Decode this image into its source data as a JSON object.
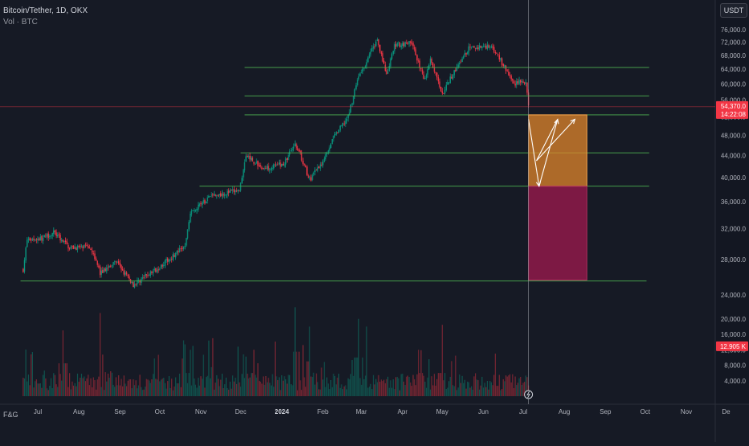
{
  "header": {
    "symbol": "Bitcoin/Tether, 1D, OKX",
    "volume_label": "Vol · BTC",
    "currency_button": "USDT"
  },
  "footer": {
    "fg_label": "F&G"
  },
  "price_badge": {
    "value": "54,370.0",
    "countdown": "14:22:08",
    "color": "#f23645"
  },
  "volume_badge": {
    "value": "12.905 K",
    "color": "#f23645"
  },
  "colors": {
    "up": "#089981",
    "down": "#f23645",
    "support_line": "#4caf50",
    "target_zone": "#e0862b",
    "stop_zone": "#8f1a4a",
    "background": "#161a25"
  },
  "chart_data": {
    "type": "candlestick",
    "title": "Bitcoin/Tether, 1D, OKX",
    "price_axis": {
      "scale": "log",
      "ticks": [
        "76,000.0",
        "72,000.0",
        "68,000.0",
        "64,000.0",
        "60,000.0",
        "56,000.0",
        "52,000.0",
        "48,000.0",
        "44,000.0",
        "40,000.0",
        "36,000.0",
        "32,000.0",
        "28,000.0",
        "24,000.0"
      ],
      "range": [
        22000,
        80000
      ]
    },
    "volume_axis": {
      "ticks": [
        "20,000.0",
        "16,000.0",
        "12,000.0",
        "8,000.0",
        "4,000.0"
      ],
      "range": [
        0,
        24000
      ]
    },
    "time_axis": {
      "labels": [
        "Jul",
        "Aug",
        "Sep",
        "Oct",
        "Nov",
        "Dec",
        "2024",
        "Feb",
        "Mar",
        "Apr",
        "May",
        "Jun",
        "Jul",
        "Aug",
        "Sep",
        "Oct",
        "Nov",
        "De"
      ]
    },
    "price_path": [
      [
        "2023-06-20",
        26800
      ],
      [
        "2023-06-23",
        30500
      ],
      [
        "2023-07-05",
        30700
      ],
      [
        "2023-07-13",
        31500
      ],
      [
        "2023-07-25",
        29500
      ],
      [
        "2023-08-10",
        29500
      ],
      [
        "2023-08-17",
        26400
      ],
      [
        "2023-08-29",
        27700
      ],
      [
        "2023-09-11",
        25100
      ],
      [
        "2023-09-30",
        27000
      ],
      [
        "2023-10-20",
        29600
      ],
      [
        "2023-10-24",
        34500
      ],
      [
        "2023-11-10",
        37000
      ],
      [
        "2023-11-30",
        37800
      ],
      [
        "2023-12-05",
        44000
      ],
      [
        "2023-12-18",
        41500
      ],
      [
        "2024-01-03",
        42500
      ],
      [
        "2024-01-11",
        46500
      ],
      [
        "2024-01-22",
        39500
      ],
      [
        "2024-01-31",
        42500
      ],
      [
        "2024-02-09",
        47500
      ],
      [
        "2024-02-20",
        52000
      ],
      [
        "2024-02-28",
        62000
      ],
      [
        "2024-03-05",
        66000
      ],
      [
        "2024-03-13",
        73000
      ],
      [
        "2024-03-20",
        62000
      ],
      [
        "2024-03-26",
        71000
      ],
      [
        "2024-04-08",
        72000
      ],
      [
        "2024-04-17",
        61000
      ],
      [
        "2024-04-22",
        66500
      ],
      [
        "2024-05-01",
        57500
      ],
      [
        "2024-05-08",
        62000
      ],
      [
        "2024-05-21",
        70000
      ],
      [
        "2024-06-07",
        71000
      ],
      [
        "2024-06-24",
        60000
      ],
      [
        "2024-06-28",
        61000
      ],
      [
        "2024-07-03",
        60000
      ],
      [
        "2024-07-05",
        54370
      ]
    ],
    "volume_peaks": [
      [
        "2023-07-20",
        17000
      ],
      [
        "2023-08-17",
        21500
      ],
      [
        "2023-10-24",
        12000
      ],
      [
        "2023-11-10",
        15000
      ],
      [
        "2023-12-11",
        12000
      ],
      [
        "2024-01-11",
        23000
      ],
      [
        "2024-01-22",
        18000
      ],
      [
        "2024-02-28",
        20000
      ],
      [
        "2024-03-05",
        18000
      ],
      [
        "2024-04-13",
        12000
      ],
      [
        "2024-05-01",
        12000
      ],
      [
        "2024-06-10",
        11000
      ]
    ],
    "horizontal_levels": [
      {
        "price": 64500,
        "from": "2023-12-04",
        "to": "2024-10-04"
      },
      {
        "price": 57000,
        "from": "2023-12-04",
        "to": "2024-10-04"
      },
      {
        "price": 52500,
        "from": "2023-12-04",
        "to": "2024-10-04"
      },
      {
        "price": 44500,
        "from": "2023-12-01",
        "to": "2024-10-04"
      },
      {
        "price": 38500,
        "from": "2023-10-31",
        "to": "2024-10-04"
      },
      {
        "price": 25500,
        "from": "2023-06-18",
        "to": "2024-10-02"
      }
    ],
    "zones": [
      {
        "name": "target",
        "from": "2024-07-05",
        "to": "2024-08-18",
        "top": 52500,
        "bottom": 38500
      },
      {
        "name": "stop",
        "from": "2024-07-05",
        "to": "2024-08-18",
        "top": 38500,
        "bottom": 25600
      }
    ],
    "projection_path": [
      [
        "2024-07-05",
        51500
      ],
      [
        "2024-07-13",
        38500
      ],
      [
        "2024-07-27",
        51500
      ],
      [
        "2024-07-11",
        43000
      ],
      [
        "2024-08-09",
        51500
      ]
    ],
    "crosshair_date": "2024-07-05",
    "last_price": 54370,
    "last_volume": 12905
  }
}
